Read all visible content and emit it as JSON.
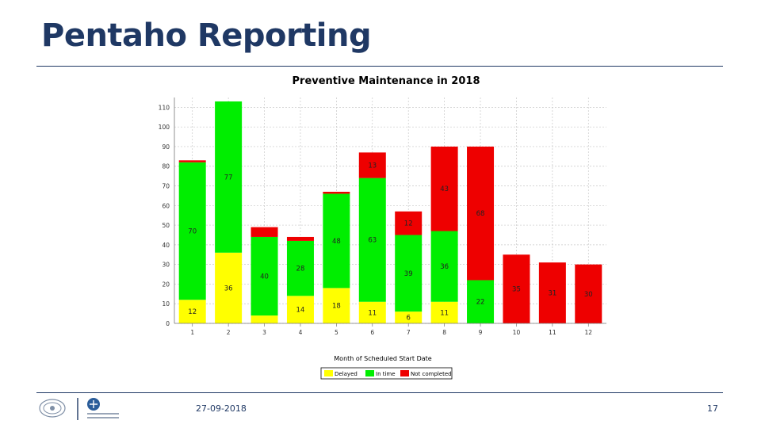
{
  "slide": {
    "title": "Pentaho Reporting",
    "date": "27-09-2018",
    "page": "17"
  },
  "colors": {
    "delayed": "#ffff00",
    "in_time": "#00ee00",
    "not_completed": "#ee0000",
    "brand": "#1f3864"
  },
  "chart_data": {
    "type": "bar",
    "stacked": true,
    "title": "Preventive Maintenance in 2018",
    "xlabel": "Month of Scheduled Start Date",
    "ylabel": "",
    "categories": [
      "1",
      "2",
      "3",
      "4",
      "5",
      "6",
      "7",
      "8",
      "9",
      "10",
      "11",
      "12"
    ],
    "ylim": [
      0,
      115
    ],
    "yticks": [
      0,
      10,
      20,
      30,
      40,
      50,
      60,
      70,
      80,
      90,
      100,
      110
    ],
    "grid": true,
    "legend_position": "bottom",
    "series": [
      {
        "name": "Delayed",
        "color": "#ffff00",
        "values": [
          12,
          36,
          4,
          14,
          18,
          11,
          6,
          11,
          0,
          0,
          0,
          0
        ],
        "labels": [
          "12",
          "36",
          "",
          "14",
          "18",
          "11",
          "6",
          "11",
          "",
          "",
          "",
          ""
        ]
      },
      {
        "name": "In time",
        "color": "#00ee00",
        "values": [
          70,
          77,
          40,
          28,
          48,
          63,
          39,
          36,
          22,
          0,
          0,
          0
        ],
        "labels": [
          "70",
          "77",
          "40",
          "28",
          "48",
          "63",
          "39",
          "36",
          "22",
          "",
          "",
          ""
        ]
      },
      {
        "name": "Not completed",
        "color": "#ee0000",
        "values": [
          1,
          0,
          5,
          2,
          1,
          13,
          12,
          43,
          68,
          35,
          31,
          30
        ],
        "labels": [
          "",
          "",
          "",
          "",
          "",
          "13",
          "12",
          "43",
          "68",
          "35",
          "31",
          "30"
        ]
      }
    ]
  }
}
